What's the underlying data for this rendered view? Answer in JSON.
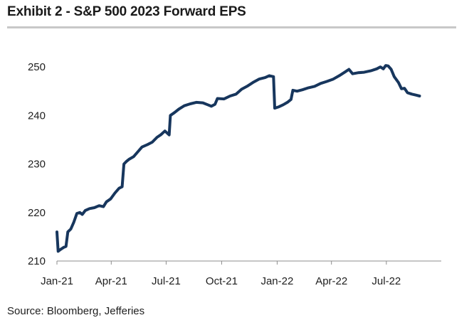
{
  "title": "Exhibit 2 - S&P 500 2023 Forward EPS",
  "source": "Source: Bloomberg, Jefferies",
  "chart_data": {
    "type": "line",
    "title": "Exhibit 2 - S&P 500 2023 Forward EPS",
    "xlabel": "",
    "ylabel": "",
    "ylim": [
      210,
      255
    ],
    "y_ticks": [
      210,
      220,
      230,
      240,
      250
    ],
    "x_ticks": [
      "Jan-21",
      "Apr-21",
      "Jul-21",
      "Oct-21",
      "Jan-22",
      "Apr-22",
      "Jul-22"
    ],
    "grid": false,
    "line_color": "#17365D",
    "series": [
      {
        "name": "",
        "points": [
          [
            "2021-01-01",
            216
          ],
          [
            "2021-01-03",
            212
          ],
          [
            "2021-01-06",
            212.3
          ],
          [
            "2021-01-12",
            212.8
          ],
          [
            "2021-01-16",
            213
          ],
          [
            "2021-01-19",
            216
          ],
          [
            "2021-01-24",
            216.6
          ],
          [
            "2021-01-29",
            218
          ],
          [
            "2021-02-03",
            219.8
          ],
          [
            "2021-02-08",
            220
          ],
          [
            "2021-02-12",
            219.6
          ],
          [
            "2021-02-17",
            220.4
          ],
          [
            "2021-02-24",
            220.8
          ],
          [
            "2021-03-04",
            221
          ],
          [
            "2021-03-12",
            221.4
          ],
          [
            "2021-03-19",
            221.2
          ],
          [
            "2021-03-24",
            222.2
          ],
          [
            "2021-03-31",
            222.8
          ],
          [
            "2021-04-07",
            224
          ],
          [
            "2021-04-14",
            225
          ],
          [
            "2021-04-19",
            225.3
          ],
          [
            "2021-04-22",
            230
          ],
          [
            "2021-04-26",
            230.5
          ],
          [
            "2021-05-01",
            231
          ],
          [
            "2021-05-08",
            231.5
          ],
          [
            "2021-05-15",
            232.5
          ],
          [
            "2021-05-22",
            233.5
          ],
          [
            "2021-05-31",
            234
          ],
          [
            "2021-06-08",
            234.5
          ],
          [
            "2021-06-16",
            235.5
          ],
          [
            "2021-06-22",
            236
          ],
          [
            "2021-06-29",
            236.8
          ],
          [
            "2021-07-06",
            236
          ],
          [
            "2021-07-08",
            240
          ],
          [
            "2021-07-15",
            240.6
          ],
          [
            "2021-07-22",
            241.3
          ],
          [
            "2021-07-31",
            242
          ],
          [
            "2021-08-10",
            242.4
          ],
          [
            "2021-08-20",
            242.7
          ],
          [
            "2021-08-31",
            242.6
          ],
          [
            "2021-09-08",
            242.2
          ],
          [
            "2021-09-14",
            241.9
          ],
          [
            "2021-09-20",
            242.3
          ],
          [
            "2021-09-24",
            243.5
          ],
          [
            "2021-10-05",
            243.4
          ],
          [
            "2021-10-15",
            244
          ],
          [
            "2021-10-25",
            244.4
          ],
          [
            "2021-11-03",
            245.4
          ],
          [
            "2021-11-12",
            246
          ],
          [
            "2021-11-22",
            246.8
          ],
          [
            "2021-12-02",
            247.5
          ],
          [
            "2021-12-12",
            247.8
          ],
          [
            "2021-12-19",
            248.2
          ],
          [
            "2021-12-26",
            248
          ],
          [
            "2021-12-28",
            241.5
          ],
          [
            "2022-01-04",
            241.8
          ],
          [
            "2022-01-11",
            242.2
          ],
          [
            "2022-01-18",
            242.7
          ],
          [
            "2022-01-24",
            243.3
          ],
          [
            "2022-01-27",
            245.2
          ],
          [
            "2022-02-03",
            245
          ],
          [
            "2022-02-12",
            245.3
          ],
          [
            "2022-02-22",
            245.7
          ],
          [
            "2022-03-04",
            246
          ],
          [
            "2022-03-14",
            246.6
          ],
          [
            "2022-03-24",
            247
          ],
          [
            "2022-04-04",
            247.5
          ],
          [
            "2022-04-14",
            248.2
          ],
          [
            "2022-04-24",
            249
          ],
          [
            "2022-04-30",
            249.5
          ],
          [
            "2022-05-06",
            248.6
          ],
          [
            "2022-05-15",
            248.8
          ],
          [
            "2022-05-25",
            248.9
          ],
          [
            "2022-06-05",
            249.2
          ],
          [
            "2022-06-15",
            249.6
          ],
          [
            "2022-06-21",
            250
          ],
          [
            "2022-06-26",
            249.6
          ],
          [
            "2022-06-30",
            250.3
          ],
          [
            "2022-07-04",
            250.2
          ],
          [
            "2022-07-09",
            249.5
          ],
          [
            "2022-07-14",
            248
          ],
          [
            "2022-07-21",
            246.8
          ],
          [
            "2022-07-26",
            245.5
          ],
          [
            "2022-07-31",
            245.6
          ],
          [
            "2022-08-05",
            244.7
          ],
          [
            "2022-08-12",
            244.4
          ],
          [
            "2022-08-19",
            244.2
          ],
          [
            "2022-08-25",
            244
          ]
        ]
      }
    ]
  }
}
